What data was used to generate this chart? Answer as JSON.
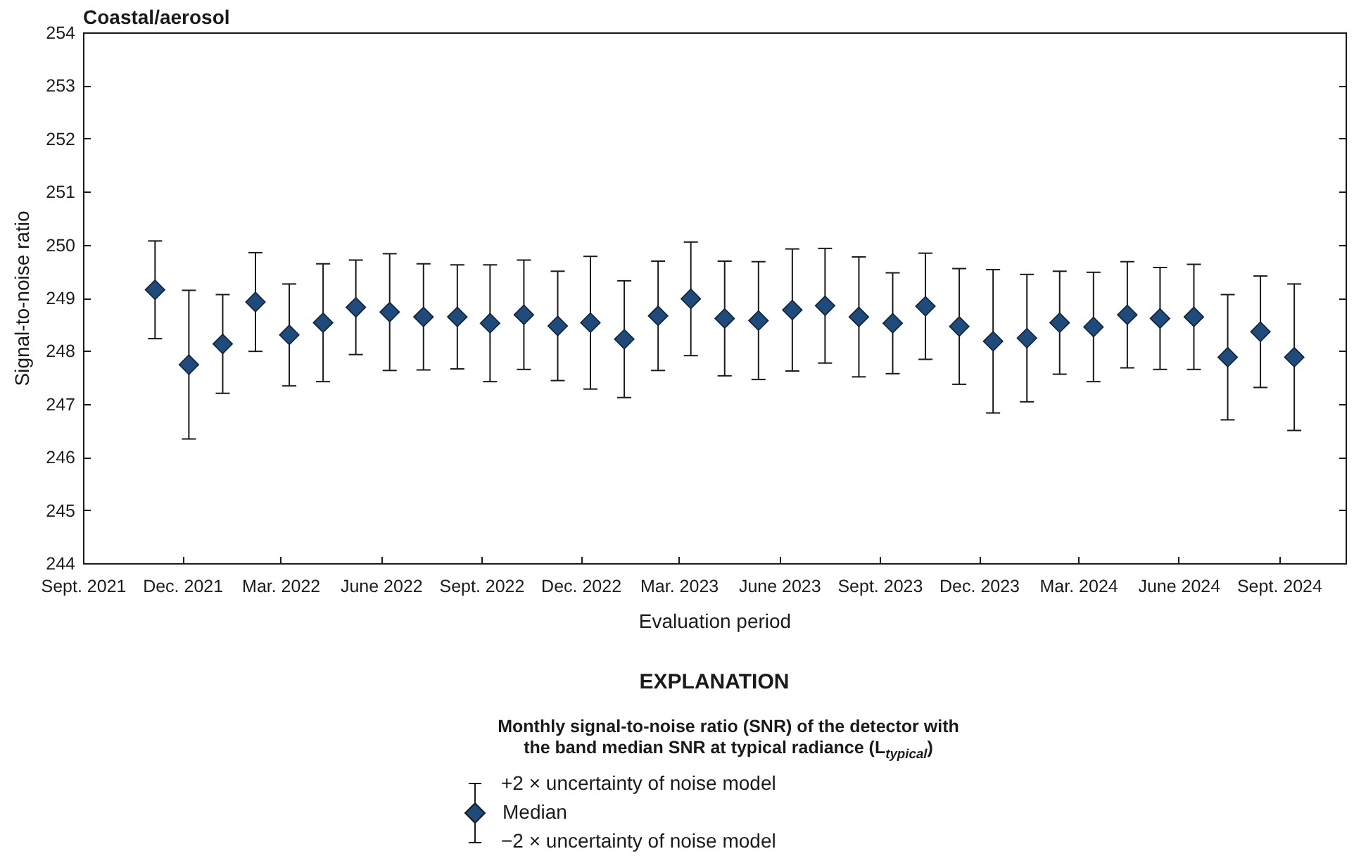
{
  "chart_data": {
    "type": "scatter",
    "title": "Coastal/aerosol",
    "xlabel": "Evaluation period",
    "ylabel": "Signal-to-noise ratio",
    "legend_title": "EXPLANATION",
    "annotations": [
      "Monthly signal-to-noise ratio (SNR) of the detector with the band median SNR at typical radiance (L$_{typical}$)",
      "+2 × uncertainty of noise model",
      "−2 × uncertainty of noise model"
    ],
    "x": [
      "2021-11-06",
      "2021-12-07",
      "2022-01-07",
      "2022-02-06",
      "2022-03-09",
      "2022-04-09",
      "2022-05-09",
      "2022-06-09",
      "2022-07-10",
      "2022-08-10",
      "2022-09-09",
      "2022-10-10",
      "2022-11-10",
      "2022-12-10",
      "2023-01-10",
      "2023-02-10",
      "2023-03-12",
      "2023-04-12",
      "2023-05-13",
      "2023-06-13",
      "2023-07-13",
      "2023-08-13",
      "2023-09-13",
      "2023-10-13",
      "2023-11-13",
      "2023-12-14",
      "2024-01-14",
      "2024-02-13",
      "2024-03-15",
      "2024-04-15",
      "2024-05-15",
      "2024-06-15",
      "2024-07-16",
      "2024-08-15",
      "2024-09-15"
    ],
    "series": [
      {
        "name": "Median",
        "color": "#1f4a7c",
        "values": [
          249.15,
          247.74,
          248.13,
          248.92,
          248.3,
          248.53,
          248.82,
          248.73,
          248.64,
          248.64,
          248.52,
          248.68,
          248.47,
          248.53,
          248.22,
          248.66,
          248.98,
          248.61,
          248.57,
          248.77,
          248.85,
          248.64,
          248.52,
          248.84,
          248.46,
          248.18,
          248.24,
          248.53,
          248.45,
          248.68,
          248.61,
          248.64,
          247.88,
          248.36,
          247.88
        ],
        "errors": [
          0.92,
          1.4,
          0.93,
          0.93,
          0.96,
          1.11,
          0.89,
          1.1,
          1.0,
          0.98,
          1.1,
          1.03,
          1.03,
          1.25,
          1.1,
          1.03,
          1.07,
          1.08,
          1.11,
          1.15,
          1.08,
          1.13,
          0.95,
          1.0,
          1.09,
          1.35,
          1.2,
          0.97,
          1.03,
          1.0,
          0.96,
          0.99,
          1.18,
          1.05,
          1.38
        ]
      }
    ],
    "marker": "diamond",
    "legend": "bottom",
    "xlim": [
      "2021-09-01",
      "2024-11-01"
    ],
    "xticks": [
      {
        "value": "2021-09-01",
        "label": "Sept. 2021"
      },
      {
        "value": "2021-12-01",
        "label": "Dec. 2021"
      },
      {
        "value": "2022-03-01",
        "label": "Mar. 2022"
      },
      {
        "value": "2022-06-01",
        "label": "June 2022"
      },
      {
        "value": "2022-09-01",
        "label": "Sept. 2022"
      },
      {
        "value": "2022-12-01",
        "label": "Dec. 2022"
      },
      {
        "value": "2023-03-01",
        "label": "Mar. 2023"
      },
      {
        "value": "2023-06-01",
        "label": "June 2023"
      },
      {
        "value": "2023-09-01",
        "label": "Sept. 2023"
      },
      {
        "value": "2023-12-01",
        "label": "Dec. 2023"
      },
      {
        "value": "2024-03-01",
        "label": "Mar. 2024"
      },
      {
        "value": "2024-06-01",
        "label": "June 2024"
      },
      {
        "value": "2024-09-01",
        "label": "Sept. 2024"
      }
    ],
    "ylim": [
      244,
      254
    ],
    "yticks": [
      244,
      245,
      246,
      247,
      248,
      249,
      250,
      251,
      252,
      253,
      254
    ]
  }
}
